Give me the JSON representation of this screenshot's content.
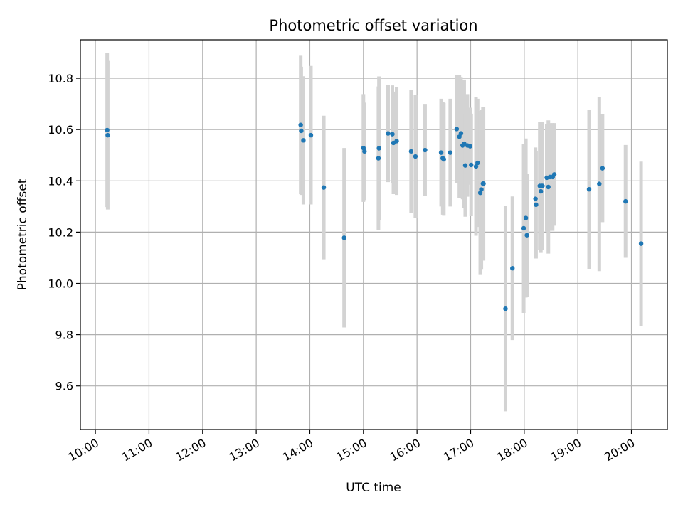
{
  "chart_data": {
    "type": "scatter",
    "title": "Photometric offset variation",
    "xlabel": "UTC time",
    "ylabel": "Photometric offset",
    "xlim": [
      9.72,
      20.67
    ],
    "ylim": [
      9.43,
      10.95
    ],
    "grid": true,
    "x_ticks": [
      10,
      11,
      12,
      13,
      14,
      15,
      16,
      17,
      18,
      19,
      20
    ],
    "x_tick_labels": [
      "10:00",
      "11:00",
      "12:00",
      "13:00",
      "14:00",
      "15:00",
      "16:00",
      "17:00",
      "18:00",
      "19:00",
      "20:00"
    ],
    "y_ticks": [
      9.6,
      9.8,
      10.0,
      10.2,
      10.4,
      10.6,
      10.8
    ],
    "y_tick_labels": [
      "9.6",
      "9.8",
      "10.0",
      "10.2",
      "10.4",
      "10.6",
      "10.8"
    ],
    "colors": {
      "point": "#1f77b4",
      "errorbar": "#d3d3d3"
    },
    "series": [
      {
        "name": "offset",
        "x": [
          10.22,
          10.23,
          13.83,
          13.84,
          13.88,
          14.02,
          14.26,
          14.64,
          15.0,
          15.02,
          15.28,
          15.29,
          15.46,
          15.54,
          15.56,
          15.62,
          15.89,
          15.97,
          16.15,
          16.45,
          16.48,
          16.5,
          16.62,
          16.74,
          16.79,
          16.82,
          16.85,
          16.88,
          16.9,
          16.94,
          16.99,
          17.01,
          17.1,
          17.13,
          17.18,
          17.2,
          17.23,
          17.24,
          17.65,
          17.78,
          17.99,
          18.03,
          18.05,
          18.21,
          18.22,
          18.29,
          18.31,
          18.32,
          18.34,
          18.42,
          18.45,
          18.48,
          18.53,
          18.56,
          19.21,
          19.4,
          19.46,
          19.89,
          20.18
        ],
        "y": [
          10.598,
          10.578,
          10.618,
          10.595,
          10.558,
          10.578,
          10.374,
          10.178,
          10.528,
          10.515,
          10.488,
          10.527,
          10.585,
          10.582,
          10.548,
          10.555,
          10.515,
          10.495,
          10.52,
          10.51,
          10.488,
          10.484,
          10.51,
          10.602,
          10.572,
          10.585,
          10.538,
          10.545,
          10.46,
          10.538,
          10.535,
          10.462,
          10.456,
          10.47,
          10.353,
          10.366,
          10.389,
          10.389,
          9.901,
          10.059,
          10.215,
          10.255,
          10.188,
          10.33,
          10.307,
          10.38,
          10.359,
          10.38,
          10.38,
          10.412,
          10.376,
          10.415,
          10.415,
          10.425,
          10.367,
          10.388,
          10.449,
          10.32,
          10.155
        ],
        "err": [
          0.3,
          0.29,
          0.27,
          0.25,
          0.25,
          0.27,
          0.28,
          0.35,
          0.21,
          0.19,
          0.28,
          0.28,
          0.19,
          0.19,
          0.2,
          0.21,
          0.24,
          0.24,
          0.18,
          0.21,
          0.22,
          0.22,
          0.21,
          0.21,
          0.24,
          0.22,
          0.21,
          0.25,
          0.2,
          0.2,
          0.15,
          0.2,
          0.27,
          0.25,
          0.32,
          0.31,
          0.3,
          0.3,
          0.4,
          0.28,
          0.33,
          0.31,
          0.24,
          0.2,
          0.21,
          0.25,
          0.24,
          0.25,
          0.25,
          0.21,
          0.26,
          0.21,
          0.21,
          0.2,
          0.31,
          0.34,
          0.21,
          0.22,
          0.32
        ]
      }
    ]
  }
}
